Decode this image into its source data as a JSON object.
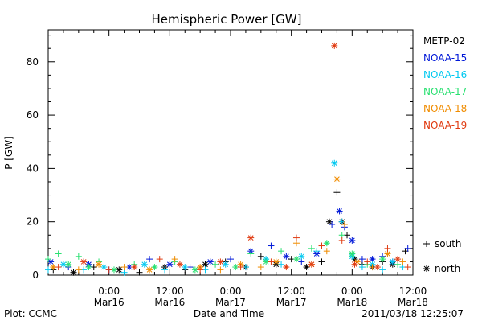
{
  "footer": {
    "credit": "Plot: CCMC",
    "timestamp": "2011/03/18 12:25:07"
  },
  "chart_data": {
    "type": "scatter",
    "title": "Hemispheric Power [GW]",
    "xlabel": "Date and Time",
    "ylabel": "P [GW]",
    "x_unit": "hours since 2011-03-15 12:00",
    "xlim": [
      0,
      72
    ],
    "ylim": [
      0,
      92
    ],
    "grid": false,
    "legend_position": "right",
    "y_ticks": [
      0,
      20,
      40,
      60,
      80
    ],
    "x_ticks": [
      {
        "x": 12,
        "line1": "0:00",
        "line2": "Mar16"
      },
      {
        "x": 24,
        "line1": "12:00",
        "line2": "Mar16"
      },
      {
        "x": 36,
        "line1": "0:00",
        "line2": "Mar17"
      },
      {
        "x": 48,
        "line1": "12:00",
        "line2": "Mar17"
      },
      {
        "x": 60,
        "line1": "0:00",
        "line2": "Mar18"
      },
      {
        "x": 72,
        "line1": "12:00",
        "line2": "Mar18"
      }
    ],
    "marker_legend": [
      {
        "symbol": "+",
        "label": "south"
      },
      {
        "symbol": "*",
        "label": "north"
      }
    ],
    "series": [
      {
        "name": "METP-02",
        "color": "#000000",
        "points": [
          [
            1,
            2,
            "+"
          ],
          [
            5,
            1,
            "*"
          ],
          [
            9,
            3,
            "+"
          ],
          [
            14,
            2,
            "*"
          ],
          [
            18,
            1,
            "+"
          ],
          [
            23,
            3,
            "*"
          ],
          [
            27,
            2,
            "+"
          ],
          [
            31,
            4,
            "*"
          ],
          [
            35,
            5,
            "+"
          ],
          [
            39,
            3,
            "*"
          ],
          [
            42,
            7,
            "+"
          ],
          [
            45,
            4,
            "*"
          ],
          [
            48,
            6,
            "+"
          ],
          [
            51,
            3,
            "*"
          ],
          [
            54,
            5,
            "+"
          ],
          [
            55.5,
            20,
            "*"
          ],
          [
            57,
            31,
            "+"
          ],
          [
            58,
            20,
            "*"
          ],
          [
            59,
            15,
            "+"
          ],
          [
            60.5,
            6,
            "*"
          ],
          [
            62,
            4,
            "+"
          ],
          [
            64,
            3,
            "*"
          ],
          [
            66,
            5,
            "+"
          ],
          [
            68,
            4,
            "*"
          ],
          [
            70.5,
            9,
            "+"
          ]
        ]
      },
      {
        "name": "NOAA-15",
        "color": "#0018d8",
        "points": [
          [
            0.5,
            5,
            "*"
          ],
          [
            4,
            3,
            "+"
          ],
          [
            8,
            4,
            "*"
          ],
          [
            12,
            2,
            "+"
          ],
          [
            16,
            3,
            "*"
          ],
          [
            20,
            6,
            "+"
          ],
          [
            24,
            4,
            "*"
          ],
          [
            28,
            3,
            "+"
          ],
          [
            32,
            5,
            "*"
          ],
          [
            36,
            6,
            "+"
          ],
          [
            40,
            9,
            "*"
          ],
          [
            44,
            11,
            "+"
          ],
          [
            47,
            7,
            "*"
          ],
          [
            50,
            5,
            "+"
          ],
          [
            53,
            8,
            "*"
          ],
          [
            56,
            19,
            "+"
          ],
          [
            57.5,
            24,
            "*"
          ],
          [
            58.5,
            18,
            "+"
          ],
          [
            60,
            13,
            "*"
          ],
          [
            62,
            6,
            "+"
          ],
          [
            64,
            6,
            "*"
          ],
          [
            66,
            7,
            "+"
          ],
          [
            68,
            5,
            "*"
          ],
          [
            71,
            10,
            "+"
          ]
        ]
      },
      {
        "name": "NOAA-16",
        "color": "#00c8f0",
        "points": [
          [
            0,
            2,
            "+"
          ],
          [
            3,
            4,
            "*"
          ],
          [
            7,
            2,
            "+"
          ],
          [
            11,
            3,
            "*"
          ],
          [
            15,
            1,
            "+"
          ],
          [
            19,
            4,
            "*"
          ],
          [
            23,
            2,
            "+"
          ],
          [
            27,
            3,
            "*"
          ],
          [
            31,
            2,
            "+"
          ],
          [
            35,
            4,
            "*"
          ],
          [
            39,
            3,
            "+"
          ],
          [
            43,
            6,
            "*"
          ],
          [
            46,
            4,
            "+"
          ],
          [
            50,
            7,
            "*"
          ],
          [
            53,
            9,
            "+"
          ],
          [
            56.5,
            42,
            "*"
          ],
          [
            58,
            20,
            "+"
          ],
          [
            60,
            7,
            "*"
          ],
          [
            62,
            3,
            "+"
          ],
          [
            64,
            4,
            "*"
          ],
          [
            66,
            2,
            "+"
          ],
          [
            68,
            5,
            "*"
          ],
          [
            70,
            3,
            "+"
          ]
        ]
      },
      {
        "name": "NOAA-17",
        "color": "#28e070",
        "points": [
          [
            0,
            6,
            "+"
          ],
          [
            2,
            8,
            "+"
          ],
          [
            4,
            4,
            "*"
          ],
          [
            6,
            7,
            "+"
          ],
          [
            8,
            3,
            "*"
          ],
          [
            10,
            5,
            "+"
          ],
          [
            13,
            2,
            "*"
          ],
          [
            17,
            4,
            "+"
          ],
          [
            21,
            3,
            "*"
          ],
          [
            25,
            5,
            "+"
          ],
          [
            29,
            2,
            "*"
          ],
          [
            33,
            4,
            "+"
          ],
          [
            37,
            3,
            "*"
          ],
          [
            40,
            8,
            "+"
          ],
          [
            43,
            5,
            "*"
          ],
          [
            46,
            9,
            "+"
          ],
          [
            49,
            6,
            "*"
          ],
          [
            52,
            10,
            "+"
          ],
          [
            55,
            12,
            "*"
          ],
          [
            58,
            15,
            "+"
          ],
          [
            60,
            8,
            "*"
          ],
          [
            63,
            4,
            "+"
          ],
          [
            66,
            6,
            "*"
          ],
          [
            69,
            4,
            "+"
          ]
        ]
      },
      {
        "name": "NOAA-18",
        "color": "#f08c00",
        "points": [
          [
            1,
            3,
            "*"
          ],
          [
            6,
            2,
            "+"
          ],
          [
            10,
            4,
            "*"
          ],
          [
            15,
            3,
            "+"
          ],
          [
            20,
            2,
            "*"
          ],
          [
            25,
            6,
            "+"
          ],
          [
            30,
            3,
            "*"
          ],
          [
            34,
            2,
            "+"
          ],
          [
            38,
            4,
            "*"
          ],
          [
            42,
            3,
            "+"
          ],
          [
            45,
            5,
            "*"
          ],
          [
            49,
            12,
            "+"
          ],
          [
            52,
            4,
            "*"
          ],
          [
            55,
            9,
            "+"
          ],
          [
            57,
            36,
            "*"
          ],
          [
            58.5,
            19,
            "+"
          ],
          [
            61,
            5,
            "*"
          ],
          [
            64,
            3,
            "+"
          ],
          [
            67,
            8,
            "*"
          ],
          [
            70,
            5,
            "+"
          ]
        ]
      },
      {
        "name": "NOAA-19",
        "color": "#e03a10",
        "points": [
          [
            2,
            3,
            "+"
          ],
          [
            7,
            5,
            "*"
          ],
          [
            12,
            2,
            "+"
          ],
          [
            17,
            3,
            "*"
          ],
          [
            22,
            6,
            "+"
          ],
          [
            26,
            4,
            "*"
          ],
          [
            30,
            2,
            "+"
          ],
          [
            34,
            5,
            "*"
          ],
          [
            38,
            3,
            "+"
          ],
          [
            40,
            14,
            "*"
          ],
          [
            44,
            5,
            "+"
          ],
          [
            47,
            3,
            "*"
          ],
          [
            49,
            14,
            "+"
          ],
          [
            52,
            4,
            "*"
          ],
          [
            54,
            11,
            "+"
          ],
          [
            56.5,
            86,
            "*"
          ],
          [
            58,
            13,
            "+"
          ],
          [
            60.5,
            4,
            "*"
          ],
          [
            63,
            5,
            "+"
          ],
          [
            65,
            3,
            "*"
          ],
          [
            67,
            10,
            "+"
          ],
          [
            69,
            6,
            "*"
          ],
          [
            71,
            3,
            "+"
          ]
        ]
      }
    ]
  }
}
